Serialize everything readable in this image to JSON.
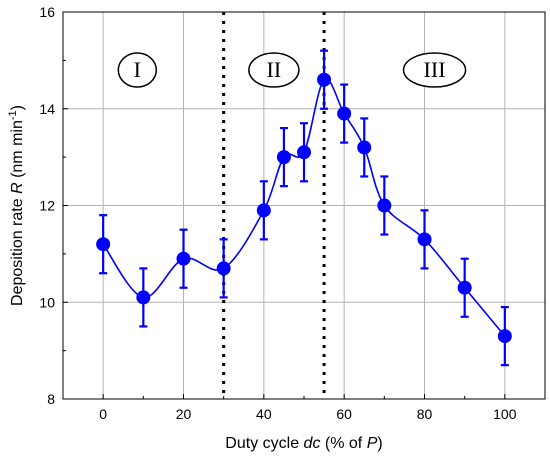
{
  "chart_data": {
    "type": "scatter",
    "title": "",
    "xlabel": {
      "prefix": "Duty cycle ",
      "italic": "dc",
      "suffix": " (% of ",
      "italic2": "P",
      "end": ")"
    },
    "ylabel": {
      "prefix": "Deposition rate ",
      "italic": "R",
      "suffix": " (nm min",
      "sup": "-1",
      "end": ")"
    },
    "xlim": [
      -10,
      110
    ],
    "ylim": [
      8,
      16
    ],
    "xticks": [
      0,
      20,
      40,
      60,
      80,
      100
    ],
    "yticks": [
      8,
      10,
      12,
      14,
      16
    ],
    "grid": true,
    "series": [
      {
        "x": [
          0,
          10,
          20,
          30,
          40,
          45,
          50,
          55,
          60,
          65,
          70,
          80,
          90,
          100
        ],
        "y": [
          11.2,
          10.1,
          10.9,
          10.7,
          11.9,
          13.0,
          13.1,
          14.6,
          13.9,
          13.2,
          12.0,
          11.3,
          10.3,
          9.3
        ],
        "error": [
          0.6,
          0.6,
          0.6,
          0.6,
          0.6,
          0.6,
          0.6,
          0.6,
          0.6,
          0.6,
          0.6,
          0.6,
          0.6,
          0.6
        ],
        "color": "#0000ff",
        "line": "smooth"
      }
    ],
    "vlines": [
      30,
      55
    ],
    "regions": [
      {
        "label": "I",
        "x": 8.5,
        "y": 14.8
      },
      {
        "label": "II",
        "x": 42.5,
        "y": 14.8
      },
      {
        "label": "III",
        "x": 82.5,
        "y": 14.8
      }
    ],
    "colors": {
      "series": "#0000ff",
      "grid": "#b4b4b4",
      "vline": "#000000"
    }
  }
}
